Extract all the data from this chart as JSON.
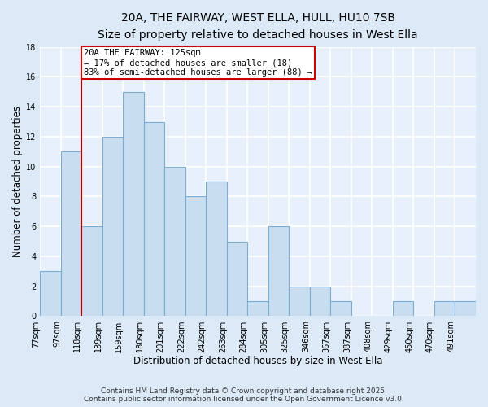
{
  "title": "20A, THE FAIRWAY, WEST ELLA, HULL, HU10 7SB",
  "subtitle": "Size of property relative to detached houses in West Ella",
  "xlabel": "Distribution of detached houses by size in West Ella",
  "ylabel": "Number of detached properties",
  "footer_line1": "Contains HM Land Registry data © Crown copyright and database right 2025.",
  "footer_line2": "Contains public sector information licensed under the Open Government Licence v3.0.",
  "bin_labels": [
    "77sqm",
    "97sqm",
    "118sqm",
    "139sqm",
    "159sqm",
    "180sqm",
    "201sqm",
    "222sqm",
    "242sqm",
    "263sqm",
    "284sqm",
    "305sqm",
    "325sqm",
    "346sqm",
    "367sqm",
    "387sqm",
    "408sqm",
    "429sqm",
    "450sqm",
    "470sqm",
    "491sqm"
  ],
  "bar_values": [
    3,
    11,
    6,
    12,
    15,
    13,
    10,
    8,
    9,
    5,
    1,
    6,
    2,
    2,
    1,
    0,
    0,
    1,
    0,
    1,
    1
  ],
  "bar_color": "#c9ddf0",
  "bar_edge_color": "#7bacd4",
  "property_line_x": 2,
  "property_line_label": "20A THE FAIRWAY: 125sqm",
  "annotation_line1": "← 17% of detached houses are smaller (18)",
  "annotation_line2": "83% of semi-detached houses are larger (88) →",
  "annotation_box_color": "#ffffff",
  "annotation_box_edge": "#cc0000",
  "line_color": "#aa0000",
  "ylim": [
    0,
    18
  ],
  "figure_background": "#dce9f7",
  "plot_background": "#e8f1fb",
  "grid_color": "#ffffff",
  "title_fontsize": 10,
  "subtitle_fontsize": 9,
  "axis_label_fontsize": 8.5,
  "tick_fontsize": 7,
  "footer_fontsize": 6.5
}
